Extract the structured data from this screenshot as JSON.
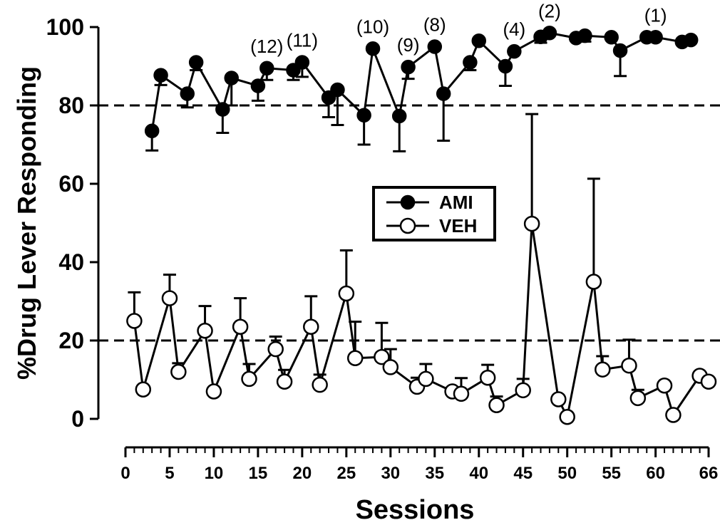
{
  "chart_data": {
    "type": "line",
    "xlabel": "Sessions",
    "ylabel": "%Drug Lever Responding",
    "xlim": [
      0,
      66
    ],
    "ylim": [
      0,
      100
    ],
    "x_ticks": [
      0,
      5,
      10,
      15,
      20,
      25,
      30,
      35,
      40,
      45,
      50,
      55,
      60,
      66
    ],
    "x_tick_labels": [
      "0",
      "5",
      "10",
      "15",
      "20",
      "25",
      "30",
      "35",
      "40",
      "45",
      "50",
      "55",
      "60",
      "66"
    ],
    "y_ticks": [
      0,
      20,
      40,
      60,
      80,
      100
    ],
    "y_tick_labels": [
      "0",
      "20",
      "40",
      "60",
      "80",
      "100"
    ],
    "reference_lines": [
      80,
      20
    ],
    "legend": {
      "placement": "center",
      "entries": [
        "AMI",
        "VEH"
      ]
    },
    "series": [
      {
        "name": "AMI",
        "marker": "filled-circle",
        "color": "#000000",
        "error_direction": "down",
        "points": [
          {
            "x": 3,
            "y": 73.5,
            "err": 5.0
          },
          {
            "x": 4,
            "y": 87.7,
            "err": 2.5
          },
          {
            "x": 7,
            "y": 83.0,
            "err": 3.5
          },
          {
            "x": 8,
            "y": 91.0,
            "err": 2.0
          },
          {
            "x": 11,
            "y": 79.0,
            "err": 6.0
          },
          {
            "x": 12,
            "y": 87.0,
            "err": 7.0
          },
          {
            "x": 15,
            "y": 85.0,
            "err": 3.8
          },
          {
            "x": 16,
            "y": 89.5,
            "err": 3.0
          },
          {
            "x": 19,
            "y": 89.0,
            "err": 2.5
          },
          {
            "x": 20,
            "y": 91.0,
            "err": 3.7
          },
          {
            "x": 23,
            "y": 82.0,
            "err": 5.0
          },
          {
            "x": 24,
            "y": 84.0,
            "err": 9.0
          },
          {
            "x": 27,
            "y": 77.5,
            "err": 7.5
          },
          {
            "x": 28,
            "y": 94.5,
            "err": 0
          },
          {
            "x": 31,
            "y": 77.3,
            "err": 9.0
          },
          {
            "x": 32,
            "y": 89.8,
            "err": 3.0
          },
          {
            "x": 35,
            "y": 95.0,
            "err": 0
          },
          {
            "x": 36,
            "y": 83.0,
            "err": 12.0
          },
          {
            "x": 39,
            "y": 91.0,
            "err": 2.0
          },
          {
            "x": 40,
            "y": 96.5,
            "err": 0
          },
          {
            "x": 43,
            "y": 90.0,
            "err": 5.0
          },
          {
            "x": 44,
            "y": 93.8,
            "err": 0
          },
          {
            "x": 47,
            "y": 97.5,
            "err": 1.5
          },
          {
            "x": 48,
            "y": 98.5,
            "err": 0
          },
          {
            "x": 51,
            "y": 97.2,
            "err": 0
          },
          {
            "x": 52,
            "y": 97.8,
            "err": 1.5
          },
          {
            "x": 55,
            "y": 97.4,
            "err": 0
          },
          {
            "x": 56,
            "y": 94.0,
            "err": 6.5
          },
          {
            "x": 59,
            "y": 97.4,
            "err": 0
          },
          {
            "x": 60,
            "y": 97.4,
            "err": 0
          },
          {
            "x": 63,
            "y": 96.2,
            "err": 0
          },
          {
            "x": 64,
            "y": 96.7,
            "err": 0
          }
        ]
      },
      {
        "name": "VEH",
        "marker": "open-circle",
        "color": "#000000",
        "error_direction": "up",
        "points": [
          {
            "x": 1,
            "y": 25.0,
            "err": 7.3
          },
          {
            "x": 2,
            "y": 7.5,
            "err": 0
          },
          {
            "x": 5,
            "y": 30.8,
            "err": 6.0
          },
          {
            "x": 6,
            "y": 12.0,
            "err": 2.2
          },
          {
            "x": 9,
            "y": 22.5,
            "err": 6.3
          },
          {
            "x": 10,
            "y": 7.0,
            "err": 0
          },
          {
            "x": 13,
            "y": 23.5,
            "err": 7.3
          },
          {
            "x": 14,
            "y": 10.2,
            "err": 3.8
          },
          {
            "x": 17,
            "y": 17.8,
            "err": 3.2
          },
          {
            "x": 18,
            "y": 9.5,
            "err": 3.0
          },
          {
            "x": 21,
            "y": 23.5,
            "err": 7.8
          },
          {
            "x": 22,
            "y": 8.7,
            "err": 2.6
          },
          {
            "x": 25,
            "y": 32.0,
            "err": 11.0
          },
          {
            "x": 26,
            "y": 15.5,
            "err": 9.3
          },
          {
            "x": 29,
            "y": 15.8,
            "err": 8.7
          },
          {
            "x": 30,
            "y": 13.2,
            "err": 4.6
          },
          {
            "x": 33,
            "y": 8.2,
            "err": 2.3
          },
          {
            "x": 34,
            "y": 10.2,
            "err": 3.8
          },
          {
            "x": 37,
            "y": 7.0,
            "err": 0
          },
          {
            "x": 38,
            "y": 6.4,
            "err": 4.0
          },
          {
            "x": 41,
            "y": 10.5,
            "err": 3.3
          },
          {
            "x": 42,
            "y": 3.5,
            "err": 2.2
          },
          {
            "x": 45,
            "y": 7.3,
            "err": 2.9
          },
          {
            "x": 46,
            "y": 49.8,
            "err": 28.0
          },
          {
            "x": 49,
            "y": 5.0,
            "err": 0
          },
          {
            "x": 50,
            "y": 0.5,
            "err": 0
          },
          {
            "x": 53,
            "y": 35.0,
            "err": 26.3
          },
          {
            "x": 54,
            "y": 12.6,
            "err": 3.4
          },
          {
            "x": 57,
            "y": 13.6,
            "err": 6.6
          },
          {
            "x": 58,
            "y": 5.3,
            "err": 2.1
          },
          {
            "x": 61,
            "y": 8.5,
            "err": 0
          },
          {
            "x": 62,
            "y": 1.0,
            "err": 0
          },
          {
            "x": 65,
            "y": 11.0,
            "err": 0
          },
          {
            "x": 66,
            "y": 9.5,
            "err": 0
          }
        ]
      }
    ],
    "annotations": [
      {
        "text": "(12)",
        "x": 16,
        "y": 89.5
      },
      {
        "text": "(11)",
        "x": 20,
        "y": 91.0
      },
      {
        "text": "(10)",
        "x": 28,
        "y": 94.5
      },
      {
        "text": "(9)",
        "x": 32,
        "y": 89.8
      },
      {
        "text": "(8)",
        "x": 35,
        "y": 95.0
      },
      {
        "text": "(4)",
        "x": 44,
        "y": 93.8
      },
      {
        "text": "(2)",
        "x": 48,
        "y": 98.5
      },
      {
        "text": "(1)",
        "x": 60,
        "y": 97.4
      }
    ]
  }
}
